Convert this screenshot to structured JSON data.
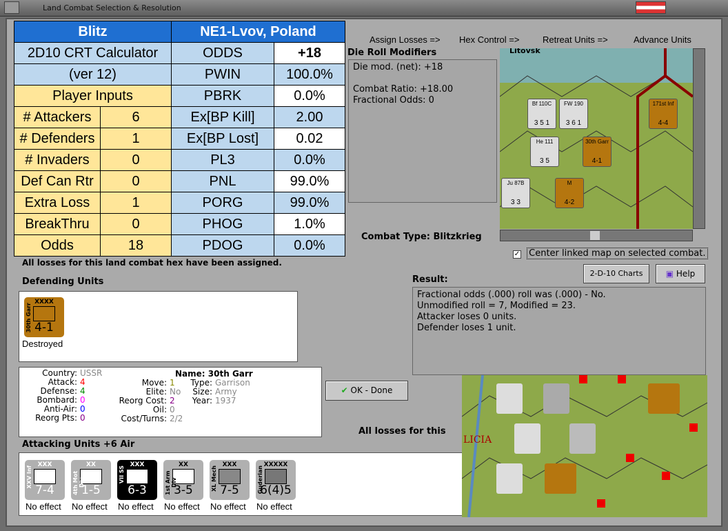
{
  "window": {
    "title": "Land Combat Selection & Resolution"
  },
  "steps": [
    "Assign Losses =>",
    "Hex Control =>",
    "Retreat Units =>",
    "Advance Units"
  ],
  "crt": {
    "mode": "Blitz",
    "hex": "NE1-Lvov, Poland",
    "calc_title": "2D10 CRT Calculator",
    "calc_version": "(ver 12)",
    "player_inputs": "Player Inputs",
    "inputs": [
      {
        "label": "# Attackers",
        "value": "6"
      },
      {
        "label": "# Defenders",
        "value": "1"
      },
      {
        "label": "# Invaders",
        "value": "0"
      },
      {
        "label": "Def Can Rtr",
        "value": "0"
      },
      {
        "label": "Extra Loss",
        "value": "1"
      },
      {
        "label": "BreakThru",
        "value": "0"
      },
      {
        "label": "Odds",
        "value": "18"
      }
    ],
    "outputs": [
      {
        "label": "ODDS",
        "value": "+18"
      },
      {
        "label": "PWIN",
        "value": "100.0%"
      },
      {
        "label": "PBRK",
        "value": "0.0%"
      },
      {
        "label": "Ex[BP Kill]",
        "value": "2.00"
      },
      {
        "label": "Ex[BP Lost]",
        "value": "0.02"
      },
      {
        "label": "PL3",
        "value": "0.0%"
      },
      {
        "label": "PNL",
        "value": "99.0%"
      },
      {
        "label": "PORG",
        "value": "99.0%"
      },
      {
        "label": "PHOG",
        "value": "1.0%"
      },
      {
        "label": "PDOG",
        "value": "0.0%"
      }
    ]
  },
  "die_roll": {
    "title": "Die Roll Modifiers",
    "lines": [
      "Die mod. (net): +18",
      "",
      "Combat Ratio: +18.00",
      "Fractional Odds: 0"
    ]
  },
  "combat_type": {
    "label": "Combat Type:",
    "value": "Blitzkrieg"
  },
  "center_map": {
    "label": "Center linked map on selected combat.",
    "checked": true
  },
  "losses_msg": "All losses for this land combat hex have been assigned.",
  "losses_msg_short": "All losses for this",
  "buttons": {
    "charts": "2-D-10 Charts",
    "help": "Help",
    "ok": "OK - Done"
  },
  "result": {
    "title": "Result:",
    "lines": [
      "Fractional odds (.000) roll was (.000)  - No.",
      "Unmodified roll = 7, Modified = 23.",
      "Attacker loses 0 units.",
      "Defender loses 1 unit."
    ]
  },
  "defending": {
    "title": "Defending Units",
    "unit": {
      "name": "30th Garr",
      "size": "XXXX",
      "strength": "4-1",
      "status": "Destroyed"
    }
  },
  "unit_info": {
    "col1": [
      {
        "k": "Country:",
        "v": "USSR",
        "c": "#888"
      },
      {
        "k": "Attack:",
        "v": "4",
        "c": "#f00"
      },
      {
        "k": "Defense:",
        "v": "4",
        "c": "#080"
      },
      {
        "k": "Bombard:",
        "v": "0",
        "c": "#f0f"
      },
      {
        "k": "Anti-Air:",
        "v": "0",
        "c": "#00f"
      },
      {
        "k": "Reorg Pts:",
        "v": "0",
        "c": "#808"
      }
    ],
    "col2": [
      {
        "k": "Move:",
        "v": "1",
        "c": "#880"
      },
      {
        "k": "Elite:",
        "v": "No",
        "c": "#888"
      },
      {
        "k": "Reorg Cost:",
        "v": "2",
        "c": "#808"
      },
      {
        "k": "Oil:",
        "v": "0",
        "c": "#888"
      },
      {
        "k": "Cost/Turns:",
        "v": "2/2",
        "c": "#888"
      }
    ],
    "name_label": "Name:",
    "name": "30th Garr",
    "col3": [
      {
        "k": "Type:",
        "v": "Garrison"
      },
      {
        "k": "Size:",
        "v": "Army"
      },
      {
        "k": "Year:",
        "v": "1937"
      }
    ]
  },
  "attacking": {
    "title": "Attacking Units +6 Air",
    "units": [
      {
        "name": "XXV Inf",
        "size": "XXX",
        "strength": "7-4",
        "status": "No effect"
      },
      {
        "name": "4th Mot Div",
        "size": "XX",
        "strength": "1-5",
        "status": "No effect"
      },
      {
        "name": "VII SS",
        "size": "XXX",
        "strength": "6-3",
        "status": "No effect"
      },
      {
        "name": "1st Arm Div",
        "size": "XX",
        "strength": "3-5",
        "status": "No effect"
      },
      {
        "name": "XL Mech",
        "size": "XXX",
        "strength": "7-5",
        "status": "No effect"
      },
      {
        "name": "Guderian",
        "size": "XXXXX",
        "strength": "6(4)5",
        "status": "No effect"
      }
    ]
  },
  "map_labels": {
    "top": "Litovsk",
    "bottom": "LICIA"
  },
  "map_counters": [
    {
      "name": "Bf 110C",
      "strength": "3 5 1"
    },
    {
      "name": "FW 190",
      "strength": "3 6 1"
    },
    {
      "name": "He 111",
      "strength": "3 5"
    },
    {
      "name": "Ju 87B",
      "strength": "3 3"
    },
    {
      "name": "171st Inf",
      "strength": "4-4"
    },
    {
      "name": "30th Garr",
      "strength": "4-1"
    },
    {
      "name": "M",
      "strength": "4-2"
    }
  ]
}
